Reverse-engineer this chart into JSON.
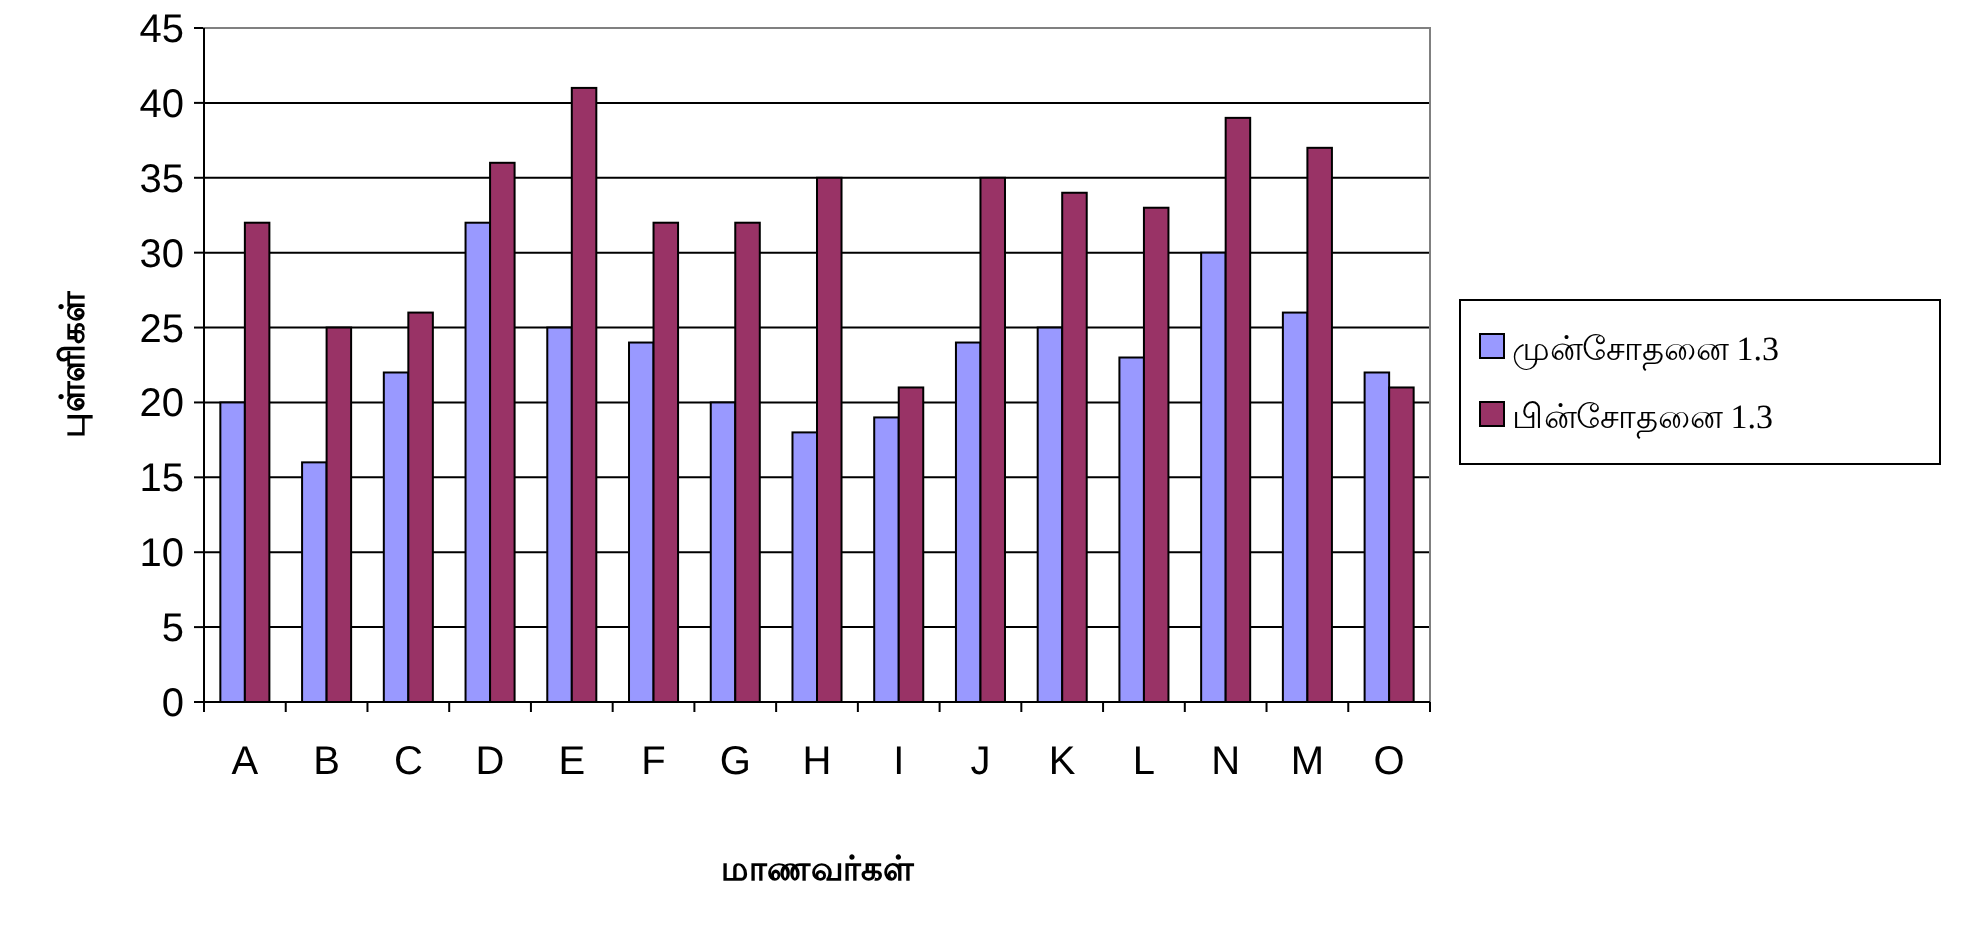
{
  "chart_data": {
    "type": "bar",
    "xlabel": "மாணவர்கள்",
    "ylabel": "புள்ளிகள்",
    "categories": [
      "A",
      "B",
      "C",
      "D",
      "E",
      "F",
      "G",
      "H",
      "I",
      "J",
      "K",
      "L",
      "N",
      "M",
      "O"
    ],
    "series": [
      {
        "name": "முன்சோதனை 1.3",
        "color": "#9999ff",
        "values": [
          20,
          16,
          22,
          32,
          25,
          24,
          20,
          18,
          19,
          24,
          25,
          23,
          30,
          26,
          22
        ]
      },
      {
        "name": "பின்சோதனை 1.3",
        "color": "#993366",
        "values": [
          32,
          25,
          26,
          36,
          41,
          32,
          32,
          35,
          21,
          35,
          34,
          33,
          39,
          37,
          21
        ]
      }
    ],
    "ylim": [
      0,
      45
    ],
    "yticks": [
      0,
      5,
      10,
      15,
      20,
      25,
      30,
      35,
      40,
      45
    ],
    "grid": "y",
    "legend": "right"
  }
}
